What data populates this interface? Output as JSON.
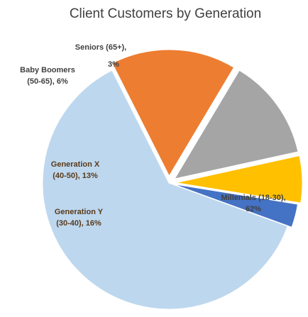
{
  "chart_data": {
    "type": "pie",
    "title": "Client Customers by Generation",
    "slices": [
      {
        "name": "Millenials (18-30)",
        "value": 62,
        "color": "#bdd7ee",
        "label_lines": [
          "Millenials (18-30),",
          "62%"
        ]
      },
      {
        "name": "Generation Y (30-40)",
        "value": 16,
        "color": "#ed7d31",
        "label_lines": [
          "Generation Y",
          "(30-40), 16%"
        ]
      },
      {
        "name": "Generation X (40-50)",
        "value": 13,
        "color": "#a5a5a5",
        "label_lines": [
          "Generation X",
          "(40-50), 13%"
        ]
      },
      {
        "name": "Baby Boomers (50-65)",
        "value": 6,
        "color": "#ffc000",
        "label_lines": [
          "Baby Boomers",
          "(50-65), 6%"
        ]
      },
      {
        "name": "Seniors (65+)",
        "value": 3,
        "color": "#4472c4",
        "label_lines": [
          "Seniors (65+),",
          "3%"
        ]
      }
    ],
    "legend": "none"
  }
}
